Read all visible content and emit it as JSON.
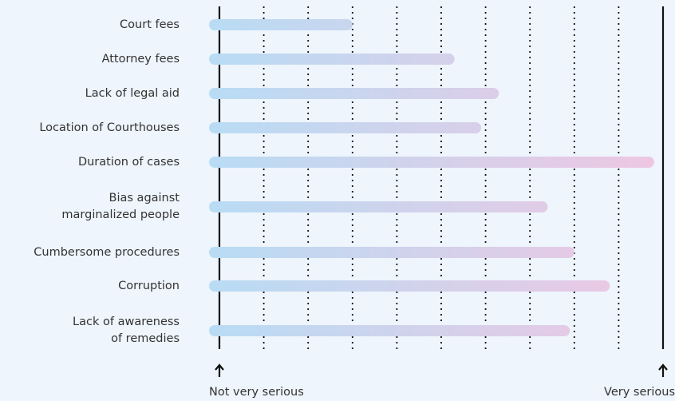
{
  "chart_data": {
    "type": "barh",
    "categories": [
      "Court fees",
      "Attorney fees",
      "Lack of legal aid",
      "Location of Courthouses",
      "Duration of cases",
      "Bias against\nmarginalized people",
      "Cumbersome procedures",
      "Corruption",
      "Lack of awareness\nof remedies"
    ],
    "values": [
      3.0,
      5.3,
      6.3,
      5.9,
      9.8,
      7.4,
      8.0,
      8.8,
      7.9
    ],
    "xlim": [
      0,
      10
    ],
    "xticks": [
      0,
      1,
      2,
      3,
      4,
      5,
      6,
      7,
      8,
      9,
      10
    ],
    "grid": true,
    "gradient": [
      "#b8dcf4",
      "#efc6e2"
    ],
    "x_min_label": "Not very serious",
    "x_max_label": "Very serious"
  }
}
